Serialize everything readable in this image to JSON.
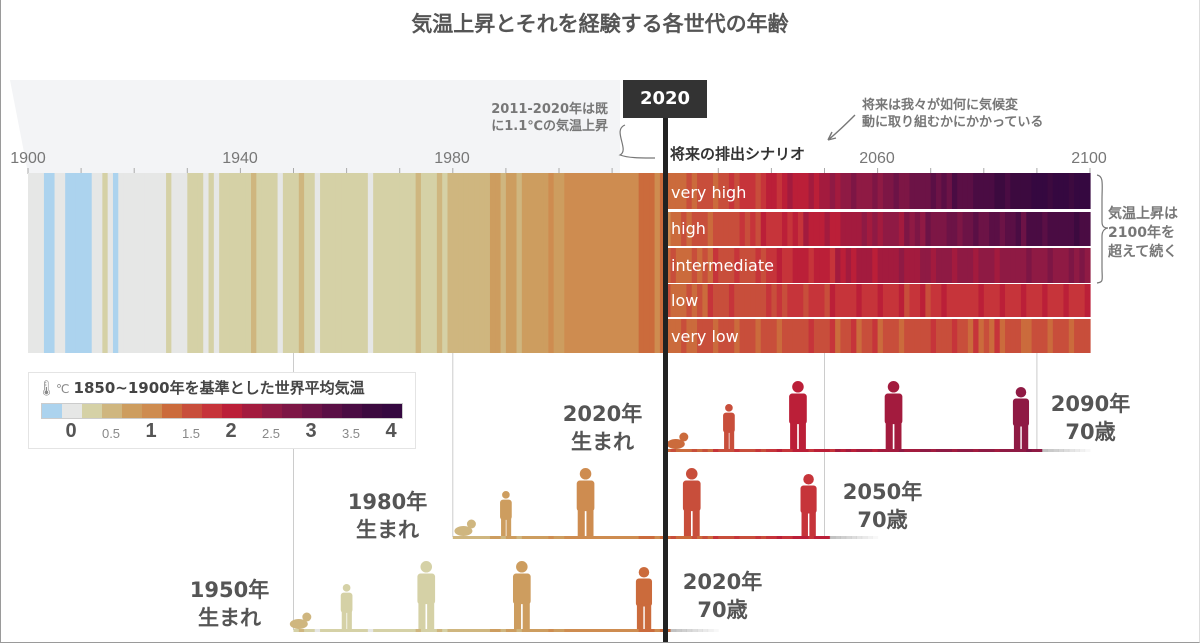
{
  "title": "気温上昇とそれを経験する各世代の年齢",
  "year_label_2020": "2020",
  "annotations": {
    "past_line1": "2011-2020年は既",
    "past_line2": "に1.1℃の気温上昇",
    "future_line1": "将来は我々が如何に気候変",
    "future_line2": "動に取り組むかにかかっている",
    "scenarios_heading": "将来の排出シナリオ",
    "beyond_line1": "気温上昇は",
    "beyond_line2": "2100年を",
    "beyond_line3": "超えて続く"
  },
  "legend": {
    "icon": "thermometer-icon",
    "unit": "℃",
    "title": "1850~1900年を基準とした世界平均気温",
    "ticks": [
      "0",
      "0.5",
      "1",
      "1.5",
      "2",
      "2.5",
      "3",
      "3.5",
      "4"
    ],
    "colors": [
      "#acd3ee",
      "#e6e7e6",
      "#d5d1a6",
      "#cfb67f",
      "#cd9d5f",
      "#ce8c50",
      "#cb6b3c",
      "#c84e3b",
      "#c6343a",
      "#bb1f38",
      "#a31b3e",
      "#8f1a44",
      "#7d1645",
      "#6c1346",
      "#5a0f45",
      "#4a0c43",
      "#3c0a3f",
      "#350840"
    ]
  },
  "chart_data": {
    "type": "heatmap",
    "title": "気温上昇とそれを経験する各世代の年齢",
    "x_ticks": [
      "1900",
      "1940",
      "1980",
      "2060",
      "2100"
    ],
    "xlim": [
      1900,
      2100
    ],
    "value_unit": "℃ (vs 1850-1900)",
    "historical": {
      "start_year": 1900,
      "values": [
        0,
        0,
        0,
        -0.25,
        -0.25,
        0,
        0,
        -0.25,
        -0.25,
        -0.25,
        -0.25,
        -0.25,
        0,
        0,
        0.25,
        0,
        -0.25,
        0,
        0,
        0,
        0,
        0,
        0,
        0,
        0,
        0,
        0.25,
        0,
        0,
        0,
        0.25,
        0.25,
        0.25,
        0,
        0.25,
        0,
        0.25,
        0.25,
        0.25,
        0.25,
        0.25,
        0.25,
        0.5,
        0.25,
        0.25,
        0.25,
        0.25,
        0,
        0.25,
        0.25,
        0.25,
        0.5,
        0.25,
        0.25,
        0,
        0.25,
        0.25,
        0.25,
        0.25,
        0.25,
        0.25,
        0.25,
        0.25,
        0.25,
        0,
        0.25,
        0.25,
        0.25,
        0.25,
        0.25,
        0.25,
        0.25,
        0.25,
        0.5,
        0.25,
        0.25,
        0.25,
        0.5,
        0.25,
        0.5,
        0.5,
        0.5,
        0.5,
        0.5,
        0.5,
        0.5,
        0.5,
        0.75,
        0.75,
        0.5,
        0.75,
        0.75,
        0.5,
        0.75,
        0.75,
        0.75,
        0.75,
        0.75,
        1,
        0.75,
        0.75,
        1,
        1,
        1,
        1,
        1,
        1,
        1,
        1,
        1,
        1,
        1,
        1,
        1,
        1,
        1.25,
        1.25,
        1.25,
        1,
        1.25,
        1.25
      ]
    },
    "scenario_decades": [
      2020,
      2030,
      2040,
      2050,
      2060,
      2070,
      2080,
      2090,
      2100
    ],
    "scenarios": [
      {
        "name": "very high",
        "values": [
          1.25,
          1.5,
          1.9,
          2.3,
          2.7,
          3.1,
          3.5,
          3.9,
          4.2
        ]
      },
      {
        "name": "high",
        "values": [
          1.25,
          1.5,
          1.8,
          2.1,
          2.4,
          2.8,
          3.1,
          3.4,
          3.7
        ]
      },
      {
        "name": "intermediate",
        "values": [
          1.25,
          1.5,
          1.75,
          2.0,
          2.2,
          2.4,
          2.5,
          2.6,
          2.7
        ]
      },
      {
        "name": "low",
        "values": [
          1.25,
          1.5,
          1.6,
          1.75,
          1.8,
          1.8,
          1.8,
          1.8,
          1.8
        ]
      },
      {
        "name": "very low",
        "values": [
          1.25,
          1.4,
          1.5,
          1.55,
          1.5,
          1.5,
          1.45,
          1.4,
          1.4
        ]
      }
    ]
  },
  "generations": [
    {
      "birth": 2020,
      "born_year": "2020年",
      "born_text": "生まれ",
      "end_year": "2090年",
      "end_age": "70歳",
      "stage_years": [
        2022,
        2032,
        2045,
        2063,
        2087
      ]
    },
    {
      "birth": 1980,
      "born_year": "1980年",
      "born_text": "生まれ",
      "end_year": "2050年",
      "end_age": "70歳",
      "stage_years": [
        1982,
        1990,
        2005,
        2025,
        2047
      ]
    },
    {
      "birth": 1950,
      "born_year": "1950年",
      "born_text": "生まれ",
      "end_year": "2020年",
      "end_age": "70歳",
      "stage_years": [
        1951,
        1960,
        1975,
        1993,
        2016
      ]
    }
  ]
}
